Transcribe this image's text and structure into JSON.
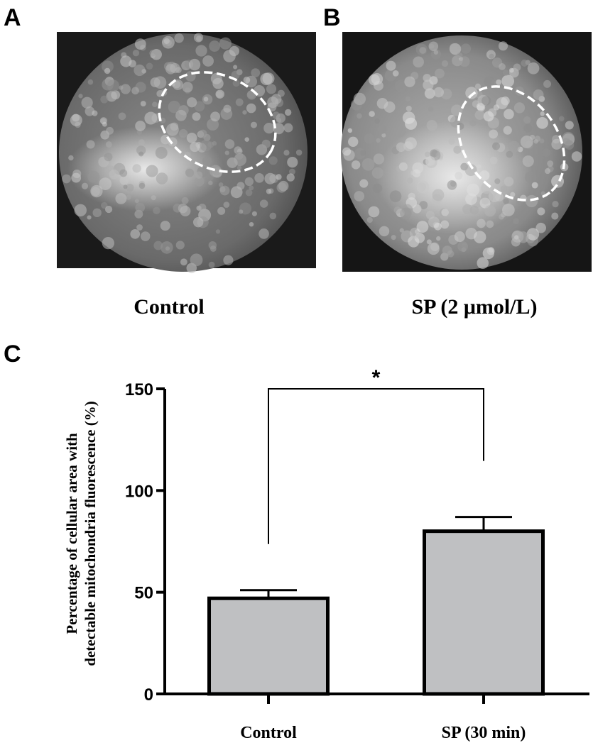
{
  "panels": [
    {
      "letter": "A",
      "caption": "Control"
    },
    {
      "letter": "B",
      "caption": "SP (2 μmol/L)"
    }
  ],
  "chart_data": {
    "type": "bar",
    "panel_letter": "C",
    "y_label": [
      "Percentage of cellular area with",
      "detectable mitochondria fluorescence (%)"
    ],
    "categories": [
      "Control",
      "SP (30 min)"
    ],
    "values": [
      47,
      80
    ],
    "errors": [
      4,
      7
    ],
    "color": "#bfc0c2",
    "ylim": [
      0,
      150
    ],
    "yticks": [
      0,
      50,
      100,
      150
    ],
    "annotation": "*"
  }
}
